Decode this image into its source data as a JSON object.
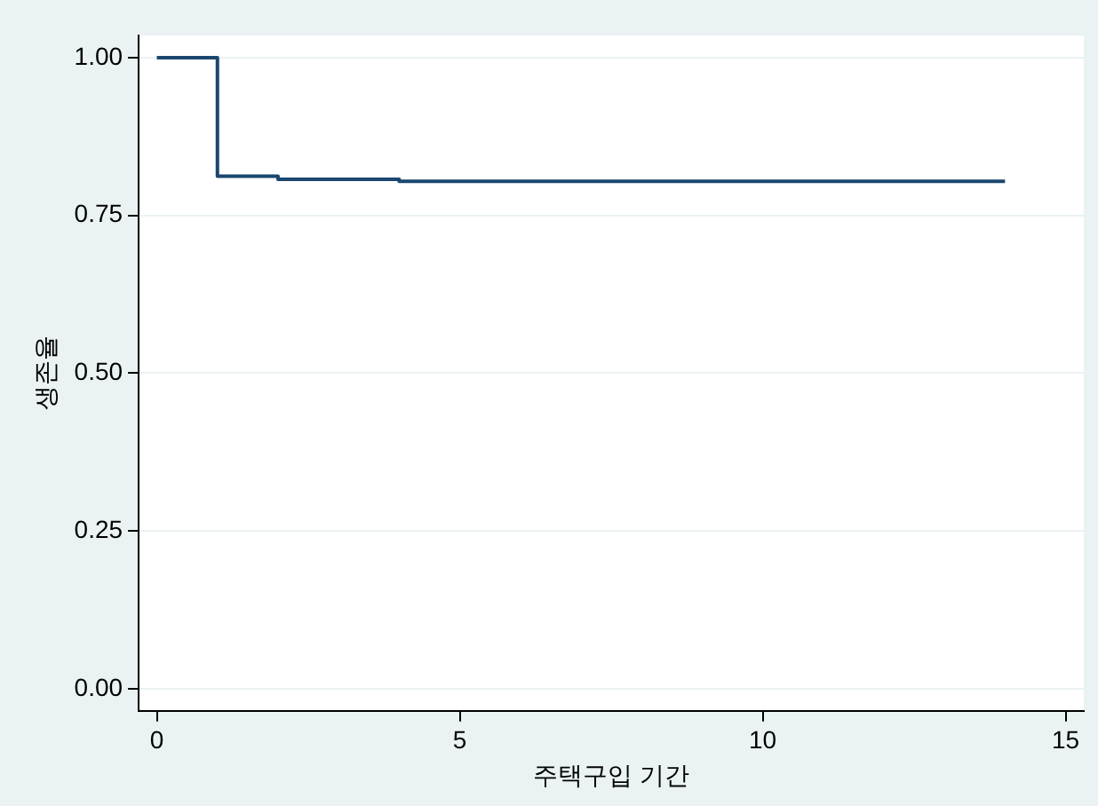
{
  "chart_data": {
    "type": "step",
    "xlabel": "주택구입 기간",
    "ylabel": "생존율",
    "x": [
      0,
      1,
      2,
      4,
      14
    ],
    "series": [
      {
        "color": "#1a476f",
        "values": [
          1,
          0.812,
          0.807,
          0.804,
          0.804
        ]
      }
    ],
    "xlim": [
      -0.3,
      15.3
    ],
    "xticks": [
      0,
      5,
      10,
      15
    ],
    "ylim": [
      -0.035,
      1.035
    ],
    "yticks": [
      {
        "value": 0,
        "label": "0.00"
      },
      {
        "value": 0.25,
        "label": "0.25"
      },
      {
        "value": 0.5,
        "label": "0.50"
      },
      {
        "value": 0.75,
        "label": "0.75"
      },
      {
        "value": 1,
        "label": "1.00"
      }
    ],
    "grid": "y",
    "legend": false
  }
}
